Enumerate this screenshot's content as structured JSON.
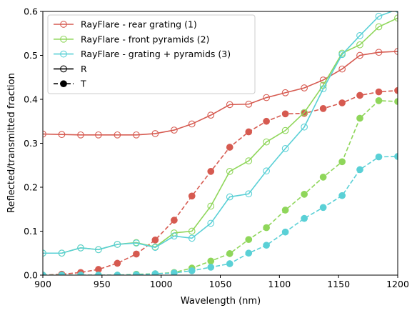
{
  "chart_data": {
    "type": "line",
    "title": "",
    "xlabel": "Wavelength (nm)",
    "ylabel": "Reflected/transmitted fraction",
    "xlim": [
      900,
      1200
    ],
    "ylim": [
      0,
      0.6
    ],
    "xticks": [
      900,
      950,
      1000,
      1050,
      1100,
      1150,
      1200
    ],
    "xtick_labels": [
      "900",
      "950",
      "1000",
      "1050",
      "1100",
      "1150",
      "1200"
    ],
    "yticks": [
      0,
      0.1,
      0.2,
      0.3,
      0.4,
      0.5,
      0.6
    ],
    "ytick_labels": [
      "0.0",
      "0.1",
      "0.2",
      "0.3",
      "0.4",
      "0.5",
      "0.6"
    ],
    "grid": false,
    "legend_position": "top-left",
    "x": [
      900,
      916,
      932,
      947,
      963,
      979,
      995,
      1011,
      1026,
      1042,
      1058,
      1074,
      1089,
      1105,
      1121,
      1137,
      1153,
      1168,
      1184,
      1200
    ],
    "series": [
      {
        "name": "RayFlare - rear grating (1)",
        "color": "#d65a50",
        "R": [
          0.321,
          0.32,
          0.319,
          0.319,
          0.319,
          0.319,
          0.322,
          0.33,
          0.344,
          0.364,
          0.388,
          0.389,
          0.404,
          0.415,
          0.426,
          0.444,
          0.469,
          0.5,
          0.507,
          0.509
        ],
        "T": [
          0.0,
          0.002,
          0.006,
          0.013,
          0.027,
          0.048,
          0.08,
          0.125,
          0.18,
          0.236,
          0.291,
          0.326,
          0.35,
          0.367,
          0.368,
          0.379,
          0.392,
          0.409,
          0.417,
          0.42
        ]
      },
      {
        "name": "RayFlare - front pyramids (2)",
        "color": "#8fd65a",
        "R": [
          0.05,
          0.05,
          0.062,
          0.058,
          0.07,
          0.074,
          0.064,
          0.096,
          0.1,
          0.157,
          0.236,
          0.26,
          0.303,
          0.329,
          0.37,
          0.432,
          0.505,
          0.524,
          0.565,
          0.585
        ],
        "T": [
          0.0,
          0.0,
          0.0,
          0.0,
          0.0,
          0.002,
          0.003,
          0.006,
          0.016,
          0.032,
          0.049,
          0.081,
          0.108,
          0.148,
          0.184,
          0.223,
          0.258,
          0.357,
          0.397,
          0.395
        ]
      },
      {
        "name": "RayFlare - grating + pyramids (3)",
        "color": "#5ad0d6",
        "R": [
          0.05,
          0.05,
          0.062,
          0.058,
          0.07,
          0.073,
          0.063,
          0.089,
          0.084,
          0.118,
          0.178,
          0.185,
          0.237,
          0.288,
          0.337,
          0.424,
          0.502,
          0.545,
          0.589,
          0.605
        ],
        "T": [
          0.0,
          0.0,
          0.0,
          0.0,
          0.0,
          0.001,
          0.003,
          0.005,
          0.01,
          0.018,
          0.026,
          0.05,
          0.068,
          0.098,
          0.129,
          0.154,
          0.181,
          0.24,
          0.269,
          0.27
        ]
      }
    ],
    "style_legend": [
      {
        "name": "R",
        "linestyle": "solid",
        "marker": "open-circle"
      },
      {
        "name": "T",
        "linestyle": "dashed",
        "marker": "filled-circle"
      }
    ]
  }
}
